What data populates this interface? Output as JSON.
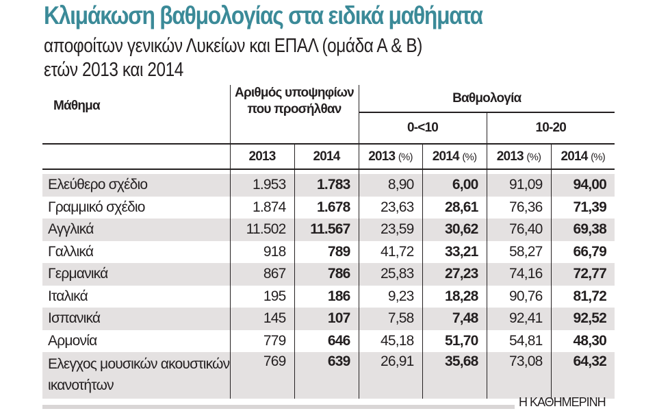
{
  "title": "Κλιμάκωση βαθμολογίας στα ειδικά μαθήματα",
  "subtitle_line1": "αποφοίτων γενικών Λυκείων και ΕΠΑΛ (ομάδα Α & Β)",
  "subtitle_line2": "ετών 2013 και 2014",
  "table": {
    "col_subject": "Μάθημα",
    "col_candidates": "Αριθμός υποψηφίων που προσήλθαν",
    "col_grades": "Βαθμολογία",
    "range_low": "0-<10",
    "range_high": "10-20",
    "year_2013": "2013",
    "year_2014": "2014",
    "pct": "(%)",
    "rows": [
      {
        "subject": "Ελεύθερο σχέδιο",
        "c2013": "1.953",
        "c2014": "1.783",
        "low2013": "8,90",
        "low2014": "6,00",
        "high2013": "91,09",
        "high2014": "94,00"
      },
      {
        "subject": "Γραμμικό σχέδιο",
        "c2013": "1.874",
        "c2014": "1.678",
        "low2013": "23,63",
        "low2014": "28,61",
        "high2013": "76,36",
        "high2014": "71,39"
      },
      {
        "subject": "Αγγλικά",
        "c2013": "11.502",
        "c2014": "11.567",
        "low2013": "23,59",
        "low2014": "30,62",
        "high2013": "76,40",
        "high2014": "69,38"
      },
      {
        "subject": "Γαλλικά",
        "c2013": "918",
        "c2014": "789",
        "low2013": "41,72",
        "low2014": "33,21",
        "high2013": "58,27",
        "high2014": "66,79"
      },
      {
        "subject": "Γερμανικά",
        "c2013": "867",
        "c2014": "786",
        "low2013": "25,83",
        "low2014": "27,23",
        "high2013": "74,16",
        "high2014": "72,77"
      },
      {
        "subject": "Ιταλικά",
        "c2013": "195",
        "c2014": "186",
        "low2013": "9,23",
        "low2014": "18,28",
        "high2013": "90,76",
        "high2014": "81,72"
      },
      {
        "subject": "Ισπανικά",
        "c2013": "145",
        "c2014": "107",
        "low2013": "7,58",
        "low2014": "7,48",
        "high2013": "92,41",
        "high2014": "92,52"
      },
      {
        "subject": "Αρμονία",
        "c2013": "779",
        "c2014": "646",
        "low2013": "45,18",
        "low2014": "51,70",
        "high2013": "54,81",
        "high2014": "48,30"
      },
      {
        "subject": "Ελεγχος μουσικών ακουστικών ικανοτήτων",
        "c2013": "769",
        "c2014": "639",
        "low2013": "26,91",
        "low2014": "35,68",
        "high2013": "73,08",
        "high2014": "64,32"
      }
    ]
  },
  "source": "Η ΚΑΘΗΜΕΡΙΝΗ",
  "colors": {
    "title": "#3b8a98",
    "row_shade": "#e4e1e1",
    "text": "#231f20"
  }
}
